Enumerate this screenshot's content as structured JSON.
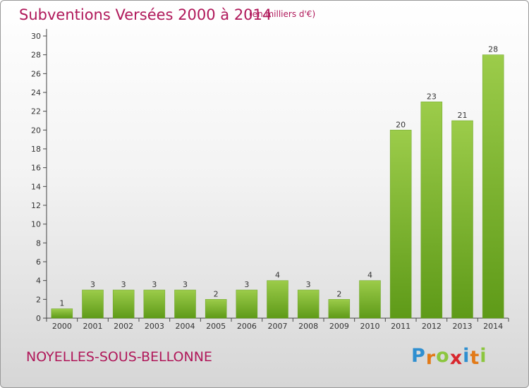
{
  "chart_data": {
    "type": "bar",
    "title": "Subventions Versées 2000 à 2014",
    "subtitle": "(en milliers d'€)",
    "categories": [
      "2000",
      "2001",
      "2002",
      "2003",
      "2004",
      "2005",
      "2006",
      "2007",
      "2008",
      "2009",
      "2010",
      "2011",
      "2012",
      "2013",
      "2014"
    ],
    "values": [
      1,
      3,
      3,
      3,
      3,
      2,
      3,
      4,
      3,
      2,
      4,
      20,
      23,
      21,
      28
    ],
    "ylim": [
      0,
      30
    ],
    "yticks": [
      0,
      2,
      4,
      6,
      8,
      10,
      12,
      14,
      16,
      18,
      20,
      22,
      24,
      26,
      28,
      30
    ],
    "grid": false,
    "bar_color": "#7ab62c"
  },
  "footer": {
    "town": "NOYELLES-SOUS-BELLONNE",
    "logo_letters": [
      {
        "char": "P",
        "color": "#2f8fd0"
      },
      {
        "char": "r",
        "color": "#e27a18"
      },
      {
        "char": "o",
        "color": "#8cc63f"
      },
      {
        "char": "x",
        "color": "#d8272e"
      },
      {
        "char": "i",
        "color": "#2f8fd0"
      },
      {
        "char": "t",
        "color": "#e27a18"
      },
      {
        "char": "i",
        "color": "#8cc63f"
      }
    ]
  },
  "colors": {
    "title": "#b0185a",
    "axis": "#444444"
  }
}
